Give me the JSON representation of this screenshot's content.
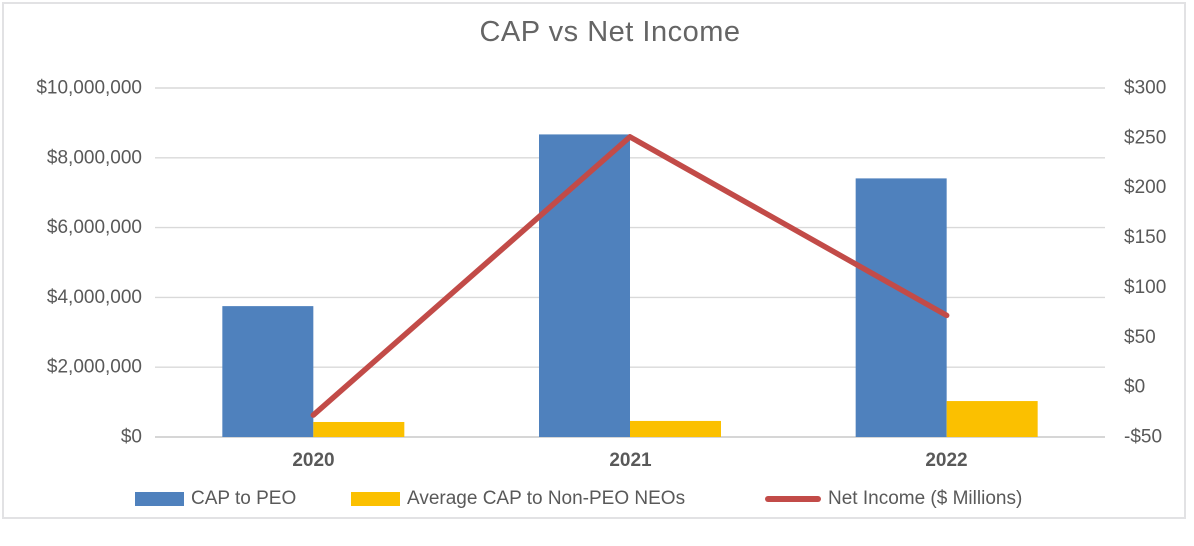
{
  "chart_data": {
    "type": "combo-bar-line",
    "title": "CAP vs Net Income",
    "categories": [
      "2020",
      "2021",
      "2022"
    ],
    "series": [
      {
        "name": "CAP to PEO",
        "type": "bar",
        "axis": "left",
        "color": "#4f81bd",
        "values": [
          3750000,
          8670000,
          7410000
        ]
      },
      {
        "name": "Average CAP to Non-PEO NEOs",
        "type": "bar",
        "axis": "left",
        "color": "#fbc000",
        "values": [
          430000,
          460000,
          1030000
        ]
      },
      {
        "name": "Net Income ($ Millions)",
        "type": "line",
        "axis": "right",
        "color": "#c24b48",
        "values": [
          -28,
          251,
          72
        ]
      }
    ],
    "left_axis": {
      "min": 0,
      "max": 10000000,
      "step": 2000000,
      "tick_labels_top_to_bottom": [
        "$10,000,000",
        "$8,000,000",
        "$6,000,000",
        "$4,000,000",
        "$2,000,000",
        "$0"
      ]
    },
    "right_axis": {
      "min": -50,
      "max": 300,
      "step": 50,
      "tick_labels_top_to_bottom": [
        "$300",
        "$250",
        "$200",
        "$150",
        "$100",
        "$50",
        "$0",
        "-$50"
      ]
    },
    "grid": true,
    "legend_position": "bottom",
    "colors": {
      "gridline": "#d9d9d9",
      "axis_line": "#d6d6d6",
      "axis_text": "#595959",
      "title_text": "#656565"
    }
  }
}
